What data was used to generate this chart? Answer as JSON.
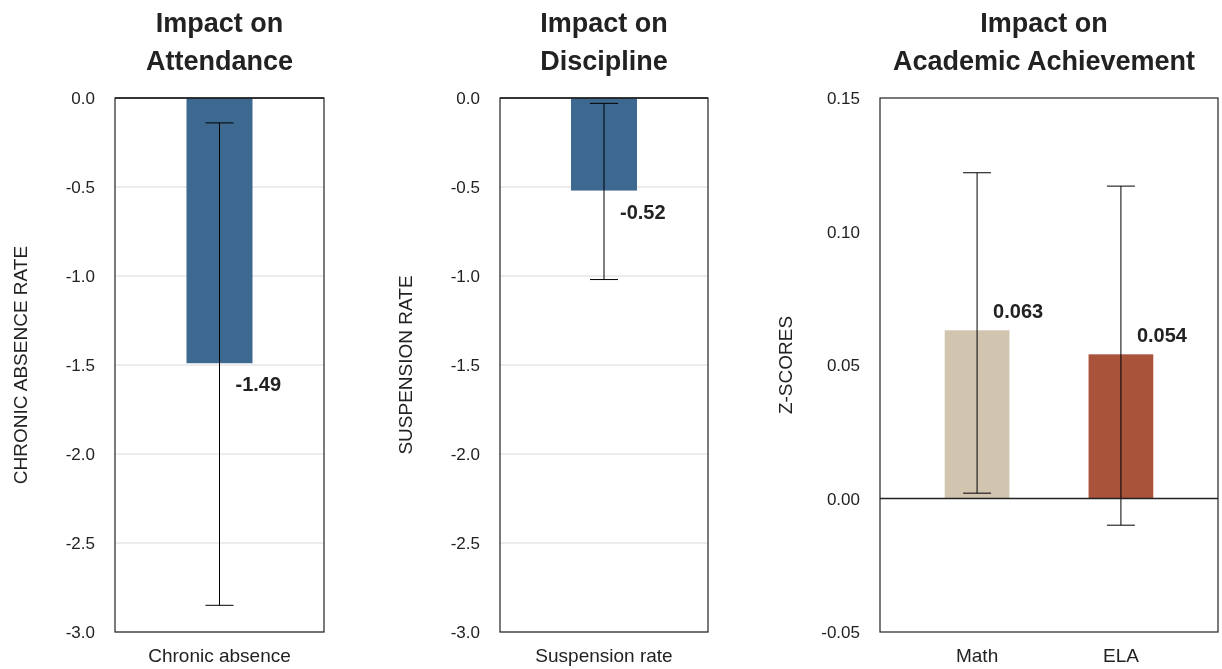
{
  "chart_data": [
    {
      "type": "bar",
      "title": "Impact on Attendance",
      "ylabel": "CHRONIC ABSENCE RATE",
      "categories": [
        "Chronic absence"
      ],
      "values": [
        -1.49
      ],
      "errors": [
        [
          -2.85,
          -0.14
        ]
      ],
      "colors": [
        "#3d6990"
      ],
      "ylim": [
        -3,
        0
      ],
      "yticks": [
        {
          "value": 0,
          "label": "0.0"
        },
        {
          "value": -0.5,
          "label": "-0.5"
        },
        {
          "value": -1,
          "label": "-1.0"
        },
        {
          "value": -1.5,
          "label": "-1.5"
        },
        {
          "value": -2,
          "label": "-2.0"
        },
        {
          "value": -2.5,
          "label": "-2.5"
        },
        {
          "value": -3,
          "label": "-3.0"
        }
      ],
      "grid": true,
      "data_labels": true
    },
    {
      "type": "bar",
      "title": "Impact on Discipline",
      "ylabel": "SUSPENSION RATE",
      "categories": [
        "Suspension rate"
      ],
      "values": [
        -0.52
      ],
      "errors": [
        [
          -1.02,
          -0.03
        ]
      ],
      "colors": [
        "#3d6990"
      ],
      "ylim": [
        -3,
        0
      ],
      "yticks": [
        {
          "value": 0,
          "label": "0.0"
        },
        {
          "value": -0.5,
          "label": "-0.5"
        },
        {
          "value": -1,
          "label": "-1.0"
        },
        {
          "value": -1.5,
          "label": "-1.5"
        },
        {
          "value": -2,
          "label": "-2.0"
        },
        {
          "value": -2.5,
          "label": "-2.5"
        },
        {
          "value": -3,
          "label": "-3.0"
        }
      ],
      "grid": true,
      "data_labels": true
    },
    {
      "type": "bar",
      "title": "Impact on Academic Achievement",
      "ylabel": "Z-SCORES",
      "categories": [
        "Math",
        "ELA"
      ],
      "values": [
        0.063,
        0.054
      ],
      "errors": [
        [
          0.002,
          0.122
        ],
        [
          -0.01,
          0.117
        ]
      ],
      "colors": [
        "#d1c5b0",
        "#a8533a"
      ],
      "ylim": [
        -0.05,
        0.15
      ],
      "yticks": [
        0.15,
        {
          "value": 0.1,
          "label": "0.10"
        },
        0.05,
        {
          "value": 0,
          "label": "0.00"
        },
        -0.05
      ],
      "data_labels": true
    }
  ]
}
